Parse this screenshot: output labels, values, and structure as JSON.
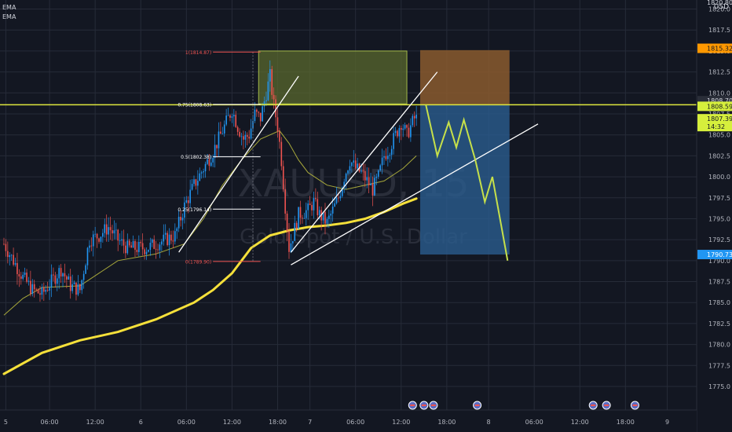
{
  "indicators": [
    "EMA",
    "EMA"
  ],
  "currency": "USD",
  "watermark": {
    "symbol": "XAUUSD, 15",
    "description": "Gold Spot / U.S. Dollar"
  },
  "colors": {
    "background": "#131722",
    "grid": "#262b38",
    "bull": "#2196f3",
    "bear": "#ef5350",
    "ema_slow": "#f5e03a",
    "ema_fast": "#a7a83b",
    "trendline": "#ffffff",
    "projection": "#c6e04a",
    "level_line": "#dfe83e",
    "stop_zone": "#8a5a2e",
    "target_zone": "#2a5d8f",
    "profit_box": "#59682e",
    "price_ref": "#ff9800",
    "price_last": "#d6ef3c",
    "price_alt": "#2196f3",
    "fib_extreme": "#ef5350",
    "fib_mid": "#ffffff"
  },
  "chart_data": {
    "type": "candlestick",
    "symbol": "XAUUSD",
    "timeframe": "15",
    "ylim": [
      1773.5,
      1820.8
    ],
    "y_ticks": [
      1775.0,
      1777.5,
      1780.0,
      1782.5,
      1785.0,
      1787.5,
      1790.0,
      1792.5,
      1795.0,
      1797.5,
      1800.0,
      1802.5,
      1805.0,
      1807.5,
      1810.0,
      1812.5,
      1815.0,
      1817.5,
      1820.0
    ],
    "x_ticks": [
      {
        "label": "5",
        "t": 1
      },
      {
        "label": "06:00",
        "t": 24
      },
      {
        "label": "12:00",
        "t": 48
      },
      {
        "label": "6",
        "t": 72
      },
      {
        "label": "06:00",
        "t": 96
      },
      {
        "label": "12:00",
        "t": 120
      },
      {
        "label": "18:00",
        "t": 144
      },
      {
        "label": "7",
        "t": 161
      },
      {
        "label": "06:00",
        "t": 185
      },
      {
        "label": "12:00",
        "t": 209
      },
      {
        "label": "18:00",
        "t": 233
      },
      {
        "label": "8",
        "t": 255
      },
      {
        "label": "06:00",
        "t": 279
      },
      {
        "label": "12:00",
        "t": 303
      },
      {
        "label": "18:00",
        "t": 327
      },
      {
        "label": "9",
        "t": 349
      }
    ],
    "candle_anchors": [
      [
        0,
        1792.0
      ],
      [
        5,
        1790.0
      ],
      [
        10,
        1788.0
      ],
      [
        15,
        1786.5
      ],
      [
        20,
        1786.0
      ],
      [
        25,
        1787.5
      ],
      [
        30,
        1789.0
      ],
      [
        35,
        1787.0
      ],
      [
        40,
        1786.5
      ],
      [
        45,
        1792.5
      ],
      [
        50,
        1793.0
      ],
      [
        55,
        1794.0
      ],
      [
        60,
        1792.5
      ],
      [
        65,
        1791.5
      ],
      [
        70,
        1791.5
      ],
      [
        75,
        1791.5
      ],
      [
        80,
        1792.0
      ],
      [
        85,
        1792.5
      ],
      [
        90,
        1793.0
      ],
      [
        95,
        1796.5
      ],
      [
        100,
        1799.0
      ],
      [
        105,
        1801.0
      ],
      [
        110,
        1803.0
      ],
      [
        115,
        1805.5
      ],
      [
        120,
        1808.0
      ],
      [
        123,
        1806.0
      ],
      [
        126,
        1804.5
      ],
      [
        129,
        1805.0
      ],
      [
        132,
        1807.5
      ],
      [
        135,
        1807.0
      ],
      [
        138,
        1810.0
      ],
      [
        140,
        1812.0
      ],
      [
        142,
        1808.5
      ],
      [
        144,
        1806.0
      ],
      [
        146,
        1802.0
      ],
      [
        148,
        1796.5
      ],
      [
        150,
        1791.5
      ],
      [
        152,
        1793.0
      ],
      [
        155,
        1795.5
      ],
      [
        160,
        1796.0
      ],
      [
        163,
        1797.0
      ],
      [
        166,
        1795.5
      ],
      [
        170,
        1794.5
      ],
      [
        173,
        1796.0
      ],
      [
        176,
        1797.5
      ],
      [
        179,
        1800.0
      ],
      [
        182,
        1802.0
      ],
      [
        185,
        1801.0
      ],
      [
        188,
        1800.5
      ],
      [
        191,
        1799.5
      ],
      [
        194,
        1798.5
      ],
      [
        197,
        1800.0
      ],
      [
        200,
        1802.5
      ],
      [
        203,
        1803.5
      ],
      [
        206,
        1805.0
      ],
      [
        209,
        1806.5
      ],
      [
        212,
        1805.0
      ],
      [
        215,
        1806.5
      ],
      [
        217,
        1807.4
      ]
    ],
    "ema_slow": [
      [
        0,
        1776.5
      ],
      [
        20,
        1779.0
      ],
      [
        40,
        1780.5
      ],
      [
        60,
        1781.5
      ],
      [
        80,
        1783.0
      ],
      [
        100,
        1785.0
      ],
      [
        110,
        1786.5
      ],
      [
        120,
        1788.5
      ],
      [
        130,
        1791.5
      ],
      [
        140,
        1793.0
      ],
      [
        150,
        1793.6
      ],
      [
        160,
        1794.0
      ],
      [
        170,
        1794.2
      ],
      [
        180,
        1794.5
      ],
      [
        190,
        1795.0
      ],
      [
        200,
        1795.8
      ],
      [
        210,
        1796.8
      ],
      [
        217,
        1797.4
      ]
    ],
    "ema_fast": [
      [
        0,
        1783.5
      ],
      [
        10,
        1785.5
      ],
      [
        20,
        1786.8
      ],
      [
        40,
        1787.0
      ],
      [
        60,
        1790.0
      ],
      [
        80,
        1790.8
      ],
      [
        95,
        1792.0
      ],
      [
        105,
        1795.0
      ],
      [
        115,
        1799.0
      ],
      [
        125,
        1802.0
      ],
      [
        135,
        1804.5
      ],
      [
        145,
        1805.5
      ],
      [
        150,
        1804.0
      ],
      [
        155,
        1802.0
      ],
      [
        160,
        1800.5
      ],
      [
        170,
        1799.0
      ],
      [
        180,
        1798.5
      ],
      [
        190,
        1799.0
      ],
      [
        200,
        1799.5
      ],
      [
        210,
        1801.0
      ],
      [
        217,
        1802.5
      ]
    ],
    "price_labels": [
      {
        "value": "1820.80",
        "kind": "top"
      },
      {
        "value": "1815.32",
        "kind": "ref"
      },
      {
        "value": "1808.70",
        "kind": "plain"
      },
      {
        "value": "1808.59",
        "kind": "last"
      },
      {
        "value": "1807.39",
        "kind": "last"
      },
      {
        "value": "14:32",
        "kind": "timer"
      },
      {
        "value": "1790.73",
        "kind": "alt"
      }
    ],
    "fib_levels": [
      {
        "label": "1(1814.87)",
        "price": 1814.87,
        "color": "#ef5350"
      },
      {
        "label": "0.75(1808.63)",
        "price": 1808.63,
        "color": "#ffffff"
      },
      {
        "label": "0.5(1802.38)",
        "price": 1802.38,
        "color": "#ffffff"
      },
      {
        "label": "0.25(1796.14)",
        "price": 1796.14,
        "color": "#ffffff"
      },
      {
        "label": "0(1789.90)",
        "price": 1789.9,
        "color": "#ef5350"
      }
    ],
    "horizontal_level": 1808.59,
    "trendlines": [
      {
        "t1": 92,
        "p1": 1791.0,
        "t2": 155,
        "p2": 1812.0
      },
      {
        "t1": 151,
        "p1": 1791.0,
        "t2": 228,
        "p2": 1812.5
      },
      {
        "t1": 151,
        "p1": 1789.5,
        "t2": 281,
        "p2": 1806.3
      }
    ],
    "profit_box": {
      "t1": 134,
      "t2": 212,
      "top": 1815.0,
      "bottom": 1808.7
    },
    "stop_zone": {
      "t1": 219,
      "t2": 266,
      "top": 1815.1,
      "bottom": 1808.59
    },
    "target_zone": {
      "t1": 219,
      "t2": 266,
      "top": 1808.59,
      "bottom": 1790.73
    },
    "projection_path": [
      [
        222,
        1808.6
      ],
      [
        228,
        1802.5
      ],
      [
        234,
        1806.5
      ],
      [
        238,
        1803.5
      ],
      [
        242,
        1806.8
      ],
      [
        248,
        1802.0
      ],
      [
        253,
        1797.0
      ],
      [
        257,
        1800.0
      ],
      [
        265,
        1790.0
      ]
    ],
    "event_markers": [
      215,
      221,
      226,
      249,
      310,
      317,
      332
    ]
  }
}
